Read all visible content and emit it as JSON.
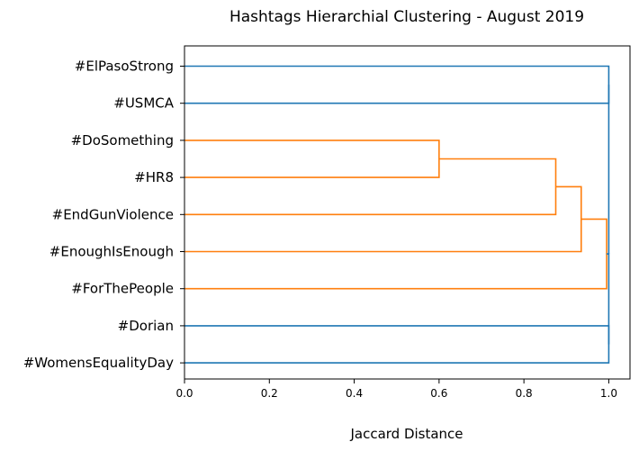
{
  "chart_data": {
    "type": "dendrogram",
    "title": "Hashtags Hierarchial Clustering - August 2019",
    "xlabel": "Jaccard Distance",
    "xlim": [
      0.0,
      1.05
    ],
    "xticks": [
      "0.0",
      "0.2",
      "0.4",
      "0.6",
      "0.8",
      "1.0"
    ],
    "xtick_values": [
      0.0,
      0.2,
      0.4,
      0.6,
      0.8,
      1.0
    ],
    "grid": false,
    "orientation": "left",
    "leaves": [
      "#ElPasoStrong",
      "#USMCA",
      "#DoSomething",
      "#HR8",
      "#EndGunViolence",
      "#EnoughIsEnough",
      "#ForThePeople",
      "#Dorian",
      "#WomensEqualityDay"
    ],
    "merges": [
      {
        "a": "#DoSomething",
        "b": "#HR8",
        "distance": 0.6,
        "color": "#ff7f0e"
      },
      {
        "a": "cluster(#DoSomething,#HR8)",
        "b": "#EndGunViolence",
        "distance": 0.875,
        "color": "#ff7f0e"
      },
      {
        "a": "cluster(#DoSomething,#HR8,#EndGunViolence)",
        "b": "#EnoughIsEnough",
        "distance": 0.935,
        "color": "#ff7f0e"
      },
      {
        "a": "cluster(#DoSomething,#HR8,#EndGunViolence,#EnoughIsEnough)",
        "b": "#ForThePeople",
        "distance": 0.995,
        "color": "#ff7f0e"
      },
      {
        "a": "all-others",
        "b": "all-others",
        "distance": 1.0,
        "color": "#1f77b4"
      }
    ],
    "colors": {
      "cluster": "#ff7f0e",
      "above_threshold": "#1f77b4"
    }
  }
}
